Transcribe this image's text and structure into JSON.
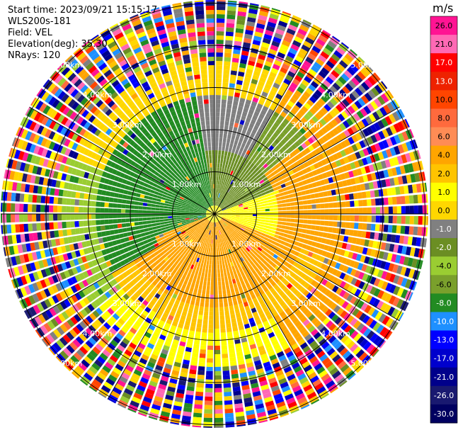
{
  "info": {
    "start_time": "Start time: 2023/09/21 15:15:17",
    "instrument": "WLS200s-181",
    "field": "Field: VEL",
    "elevation": "Elevation(deg): 35.30",
    "nrays": "NRays: 120"
  },
  "colorbar": {
    "unit": "m/s",
    "labels": [
      "26.0",
      "21.0",
      "17.0",
      "13.0",
      "10.0",
      "8.0",
      "6.0",
      "4.0",
      "2.0",
      "1.0",
      "0.0",
      "-1.0",
      "-2.0",
      "-4.0",
      "-6.0",
      "-8.0",
      "-10.0",
      "-13.0",
      "-17.0",
      "-21.0",
      "-26.0",
      "-30.0"
    ],
    "colors": [
      "#ff1493",
      "#ff69b4",
      "#ff0000",
      "#ee2200",
      "#ff4500",
      "#ff6a3d",
      "#ff8c55",
      "#ffa500",
      "#ffc400",
      "#ffff00",
      "#ffd700",
      "#808080",
      "#6b8e23",
      "#9acd32",
      "#7aa02c",
      "#228b22",
      "#1e90ff",
      "#0000ff",
      "#0000cd",
      "#00008b",
      "#191970",
      "#000060"
    ]
  },
  "range_labels": [
    "1.00km",
    "2.00km",
    "3.00km",
    "4.00km",
    "5.00km"
  ],
  "rings": [
    1,
    2,
    3,
    4,
    5
  ]
}
